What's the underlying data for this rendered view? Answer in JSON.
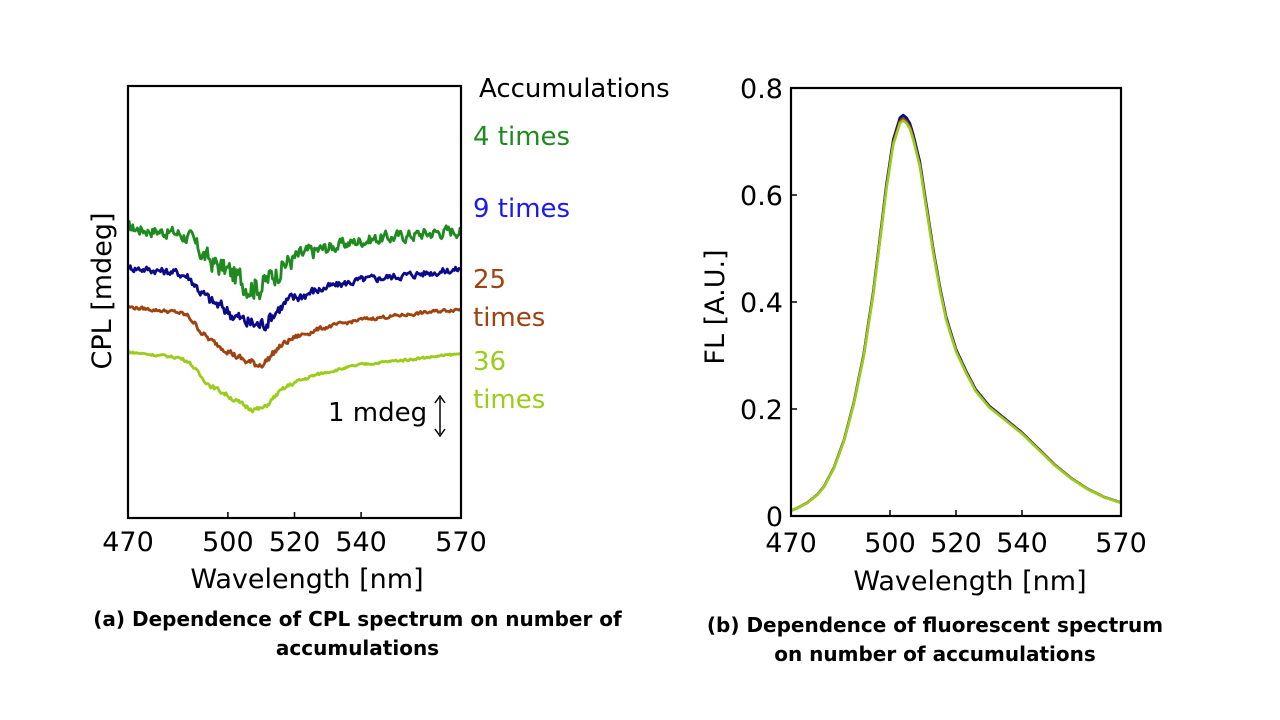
{
  "colors": {
    "green": "#1f8a1f",
    "navy": "#0a0a8a",
    "brown": "#a0420e",
    "lime": "#9acd1a",
    "label_blue": "#1a1aee"
  },
  "captions": {
    "a": "(a) Dependence of CPL spectrum on number of accumulations",
    "b": "(b) Dependence of fluorescent spectrum on number of accumulations"
  },
  "chart_data": [
    {
      "type": "line",
      "xlabel": "Wavelength [nm]",
      "ylabel": "CPL [mdeg]",
      "xlim": [
        470,
        570
      ],
      "x_ticks": [
        470,
        500,
        520,
        540,
        570
      ],
      "legend_title": "Accumulations",
      "scale_bar_label": "1 mdeg",
      "scale_bar_value_mdeg": 1,
      "series": [
        {
          "name": "4 times",
          "color": "#1f8a1f",
          "offset_mdeg": 3.45,
          "noise_mdeg": 0.25
        },
        {
          "name": "9 times",
          "color": "#0a0a8a",
          "offset_mdeg": 2.35,
          "noise_mdeg": 0.15
        },
        {
          "name": "25 times",
          "color": "#a0420e",
          "offset_mdeg": 1.25,
          "noise_mdeg": 0.07
        },
        {
          "name": "36 times",
          "color": "#9acd1a",
          "offset_mdeg": 0.0,
          "noise_mdeg": 0.05
        }
      ],
      "shape": {
        "x": [
          470,
          475,
          480,
          485,
          488,
          490,
          492,
          495,
          498,
          500,
          503,
          505,
          507,
          509,
          511,
          513,
          515,
          518,
          520,
          523,
          526,
          530,
          535,
          540,
          545,
          550,
          555,
          560,
          565,
          570
        ],
        "y": [
          0.0,
          -0.05,
          -0.1,
          -0.15,
          -0.25,
          -0.45,
          -0.7,
          -0.95,
          -1.1,
          -1.2,
          -1.4,
          -1.5,
          -1.55,
          -1.6,
          -1.55,
          -1.35,
          -1.15,
          -0.95,
          -0.85,
          -0.75,
          -0.65,
          -0.55,
          -0.45,
          -0.35,
          -0.3,
          -0.25,
          -0.2,
          -0.15,
          -0.1,
          -0.05
        ]
      },
      "grid": false,
      "yticks_shown": false
    },
    {
      "type": "line",
      "xlabel": "Wavelength [nm]",
      "ylabel": "FL [A.U.]",
      "xlim": [
        470,
        570
      ],
      "ylim": [
        0,
        0.8
      ],
      "x_ticks": [
        470,
        500,
        520,
        540,
        570
      ],
      "y_ticks": [
        "0",
        "0.2",
        "0.4",
        "0.6",
        "0.8"
      ],
      "grid": false,
      "series": [
        {
          "name": "4 times",
          "color": "#1f8a1f",
          "scale": 1.0
        },
        {
          "name": "9 times",
          "color": "#0a0a8a",
          "scale": 1.006
        },
        {
          "name": "25 times",
          "color": "#a0420e",
          "scale": 0.997
        },
        {
          "name": "36 times",
          "color": "#9acd1a",
          "scale": 0.992
        }
      ],
      "x": [
        470,
        472,
        475,
        478,
        480,
        483,
        486,
        489,
        492,
        495,
        497,
        499,
        501,
        503,
        504,
        505,
        506,
        507,
        509,
        511,
        513,
        515,
        517,
        520,
        523,
        526,
        530,
        535,
        540,
        545,
        550,
        555,
        560,
        565,
        570
      ],
      "y": [
        0.01,
        0.015,
        0.025,
        0.04,
        0.055,
        0.09,
        0.14,
        0.21,
        0.3,
        0.42,
        0.52,
        0.62,
        0.7,
        0.74,
        0.745,
        0.74,
        0.73,
        0.71,
        0.66,
        0.58,
        0.5,
        0.43,
        0.37,
        0.31,
        0.27,
        0.235,
        0.205,
        0.18,
        0.155,
        0.125,
        0.095,
        0.07,
        0.05,
        0.035,
        0.025
      ]
    }
  ]
}
